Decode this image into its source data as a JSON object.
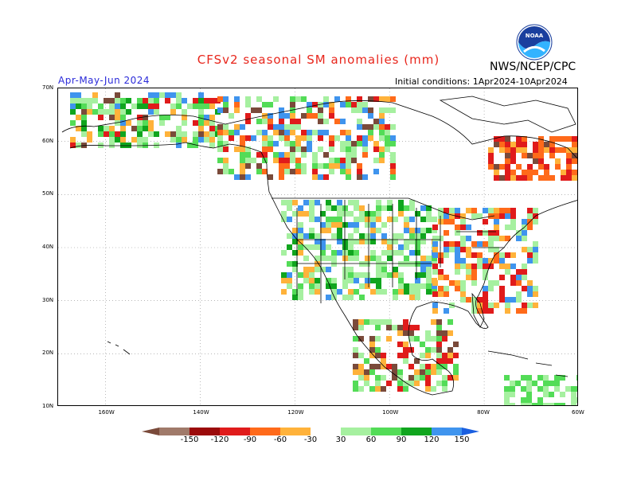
{
  "header": {
    "title": "CFSv2 seasonal SM anomalies (mm)",
    "season": "Apr-May-Jun 2024",
    "initial_conditions": "Initial conditions: 1Apr2024-10Apr2024",
    "agency": "NWS/NCEP/CPC",
    "logo_text": "NOAA",
    "logo_icon": "noaa-logo-icon"
  },
  "map": {
    "lat_labels": [
      "70N",
      "60N",
      "50N",
      "40N",
      "30N",
      "20N",
      "10N"
    ],
    "lon_labels": [
      "160W",
      "140W",
      "120W",
      "100W",
      "80W",
      "60W"
    ],
    "lat_range": [
      10,
      70
    ],
    "lon_range": [
      -170,
      -60
    ]
  },
  "colorbar": {
    "labels": [
      "-150",
      "-120",
      "-90",
      "-60",
      "-30",
      "30",
      "60",
      "90",
      "120",
      "150"
    ],
    "colors": [
      "#7a4a3a",
      "#a07a6a",
      "#9b0a0a",
      "#e01b1b",
      "#ff6a1a",
      "#ffb23a",
      "#ffffff",
      "#a6f0a0",
      "#53dc57",
      "#10a51e",
      "#3f94ee",
      "#1a5fe0"
    ]
  },
  "legend_colors": {
    "land_outline": "#000000",
    "ocean": "#ffffff",
    "grid": "#8c8c8c",
    "title": "#e8261c",
    "season": "#2b2bd9"
  }
}
